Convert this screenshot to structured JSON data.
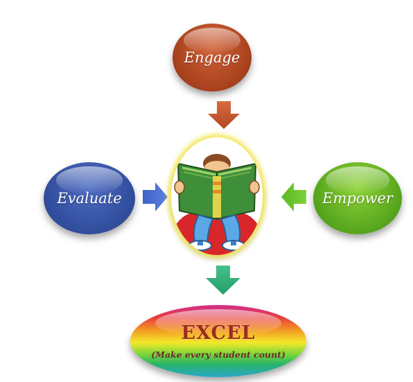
{
  "diagram": {
    "top_node": "Engage",
    "left_node": "Evaluate",
    "right_node": "Empower",
    "bottom_node": {
      "title": "EXCEL",
      "subtitle": "(Make every student count)"
    },
    "center_image": "child-reading-book-icon",
    "colors": {
      "engage": "#a6401c",
      "evaluate": "#304c9b",
      "empower": "#55a41d",
      "arrow_top": "#c9572f",
      "arrow_left": "#4a6fd0",
      "arrow_right": "#6cc52c",
      "arrow_bottom": "#2fb07a"
    }
  }
}
